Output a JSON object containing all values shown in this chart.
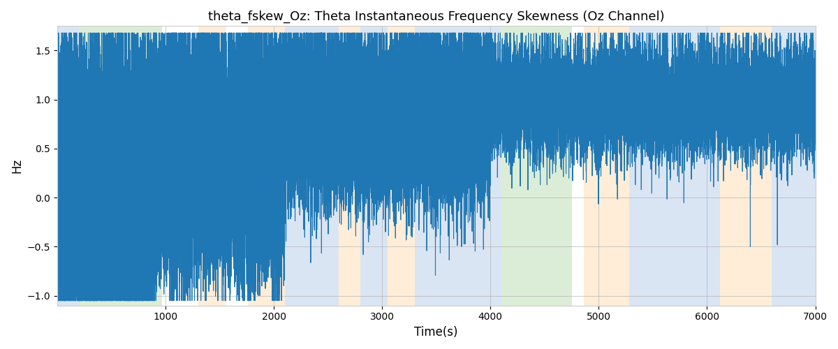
{
  "title": "theta_fskew_Oz: Theta Instantaneous Frequency Skewness (Oz Channel)",
  "xlabel": "Time(s)",
  "ylabel": "Hz",
  "xlim": [
    0,
    7000
  ],
  "ylim": [
    -1.1,
    1.75
  ],
  "yticks": [
    -1.0,
    -0.5,
    0.0,
    0.5,
    1.0,
    1.5
  ],
  "xticks": [
    1000,
    2000,
    3000,
    4000,
    5000,
    6000,
    7000
  ],
  "line_color": "#1f77b4",
  "line_width": 0.8,
  "background_regions": [
    {
      "xmin": 0,
      "xmax": 200,
      "color": "#aec6e8",
      "alpha": 0.45
    },
    {
      "xmin": 200,
      "xmax": 970,
      "color": "#b2d8a8",
      "alpha": 0.45
    },
    {
      "xmin": 970,
      "xmax": 1300,
      "color": "#ffffff",
      "alpha": 0.0
    },
    {
      "xmin": 1300,
      "xmax": 1560,
      "color": "#ffd9a8",
      "alpha": 0.45
    },
    {
      "xmin": 1560,
      "xmax": 1760,
      "color": "#ffffff",
      "alpha": 0.0
    },
    {
      "xmin": 1760,
      "xmax": 2100,
      "color": "#ffd9a8",
      "alpha": 0.45
    },
    {
      "xmin": 2100,
      "xmax": 2600,
      "color": "#aec6e8",
      "alpha": 0.45
    },
    {
      "xmin": 2600,
      "xmax": 2800,
      "color": "#ffd9a8",
      "alpha": 0.45
    },
    {
      "xmin": 2800,
      "xmax": 3050,
      "color": "#aec6e8",
      "alpha": 0.45
    },
    {
      "xmin": 3050,
      "xmax": 3300,
      "color": "#ffd9a8",
      "alpha": 0.45
    },
    {
      "xmin": 3300,
      "xmax": 4000,
      "color": "#aec6e8",
      "alpha": 0.45
    },
    {
      "xmin": 4000,
      "xmax": 4100,
      "color": "#aec6e8",
      "alpha": 0.45
    },
    {
      "xmin": 4100,
      "xmax": 4750,
      "color": "#b2d8a8",
      "alpha": 0.45
    },
    {
      "xmin": 4750,
      "xmax": 4860,
      "color": "#ffffff",
      "alpha": 0.0
    },
    {
      "xmin": 4860,
      "xmax": 5280,
      "color": "#ffd9a8",
      "alpha": 0.45
    },
    {
      "xmin": 5280,
      "xmax": 6120,
      "color": "#aec6e8",
      "alpha": 0.45
    },
    {
      "xmin": 6120,
      "xmax": 6600,
      "color": "#ffd9a8",
      "alpha": 0.45
    },
    {
      "xmin": 6600,
      "xmax": 7000,
      "color": "#aec6e8",
      "alpha": 0.45
    }
  ],
  "grid_color": "#aaaaaa",
  "grid_alpha": 0.6,
  "grid_linewidth": 0.7,
  "figsize": [
    12,
    5
  ],
  "dpi": 100,
  "seed": 17
}
